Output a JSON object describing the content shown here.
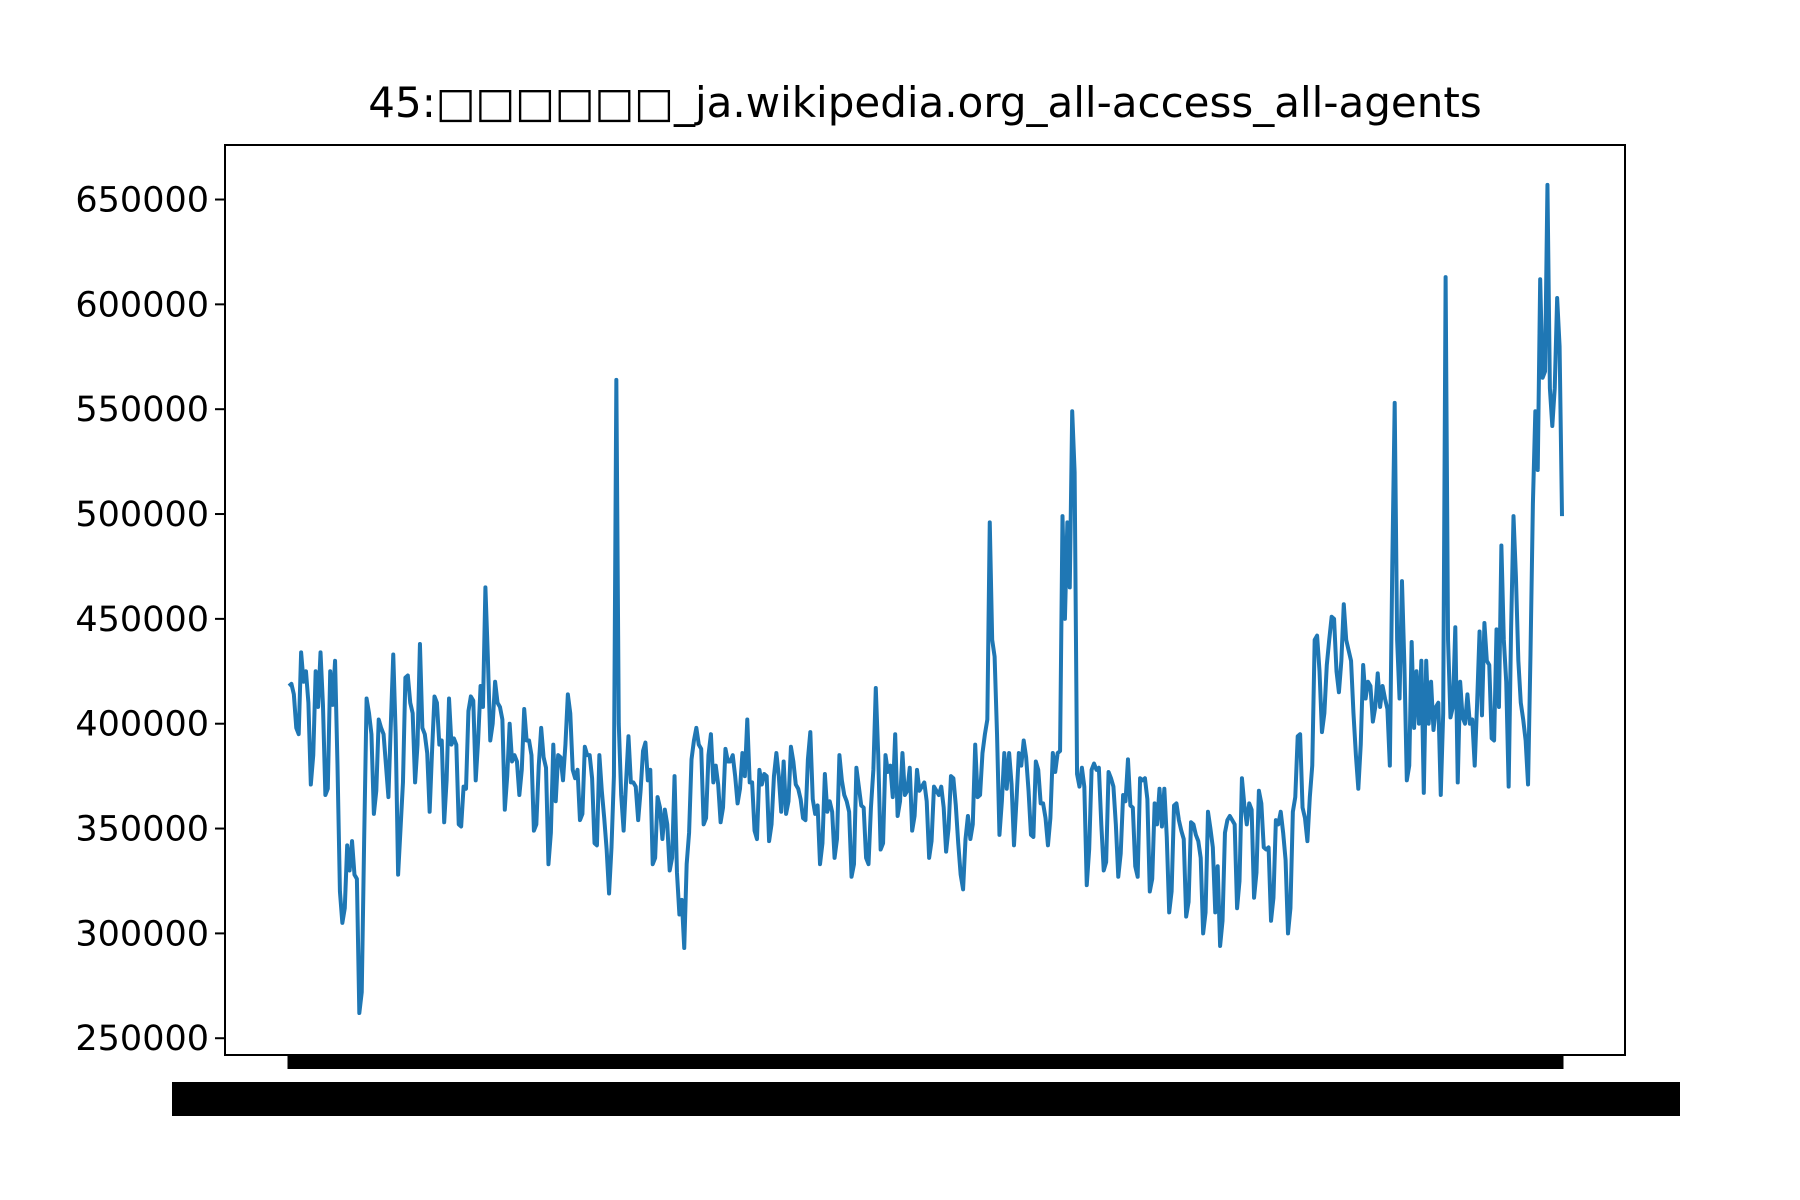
{
  "chart_data": {
    "type": "line",
    "title": "45:□□□□□□_ja.wikipedia.org_all-access_all-agents",
    "xlabel": "",
    "ylabel": "",
    "ylim": [
      242000,
      676000
    ],
    "yticks": [
      250000,
      300000,
      350000,
      400000,
      450000,
      500000,
      550000,
      600000,
      650000
    ],
    "ytick_labels": [
      "250000",
      "300000",
      "350000",
      "400000",
      "450000",
      "500000",
      "550000",
      "600000",
      "650000"
    ],
    "grid": false,
    "legend": "none",
    "color": "#1f77b4",
    "series": [
      {
        "values": [
          418000,
          419000,
          414000,
          398000,
          395000,
          434000,
          420000,
          425000,
          410000,
          371000,
          385000,
          425000,
          408000,
          434000,
          409000,
          366000,
          369000,
          425000,
          409000,
          430000,
          380000,
          320000,
          305000,
          312000,
          342000,
          330000,
          344000,
          328000,
          326000,
          262000,
          272000,
          345000,
          412000,
          405000,
          395000,
          357000,
          368000,
          402000,
          398000,
          395000,
          380000,
          365000,
          400000,
          433000,
          395000,
          328000,
          350000,
          372000,
          422000,
          423000,
          410000,
          405000,
          372000,
          390000,
          438000,
          398000,
          395000,
          386000,
          358000,
          387000,
          413000,
          410000,
          390000,
          392000,
          353000,
          373000,
          412000,
          390000,
          393000,
          390000,
          352000,
          351000,
          370000,
          369000,
          406000,
          413000,
          411000,
          373000,
          392000,
          418000,
          408000,
          465000,
          432000,
          392000,
          400000,
          420000,
          410000,
          408000,
          402000,
          359000,
          375000,
          400000,
          382000,
          385000,
          382000,
          366000,
          378000,
          407000,
          392000,
          392000,
          385000,
          349000,
          352000,
          380000,
          398000,
          384000,
          379000,
          333000,
          348000,
          390000,
          363000,
          385000,
          384000,
          373000,
          390000,
          414000,
          405000,
          378000,
          374000,
          378000,
          354000,
          357000,
          389000,
          385000,
          385000,
          374000,
          343000,
          342000,
          385000,
          368000,
          355000,
          340000,
          319000,
          341000,
          375000,
          564000,
          400000,
          366000,
          349000,
          372000,
          394000,
          372000,
          372000,
          370000,
          354000,
          368000,
          387000,
          391000,
          373000,
          378000,
          333000,
          336000,
          365000,
          360000,
          345000,
          359000,
          352000,
          330000,
          336000,
          375000,
          329000,
          309000,
          316000,
          293000,
          333000,
          348000,
          383000,
          392000,
          398000,
          390000,
          388000,
          352000,
          355000,
          385000,
          395000,
          372000,
          380000,
          371000,
          353000,
          360000,
          388000,
          382000,
          382000,
          385000,
          375000,
          362000,
          369000,
          386000,
          375000,
          402000,
          372000,
          372000,
          349000,
          345000,
          378000,
          371000,
          376000,
          375000,
          344000,
          352000,
          375000,
          386000,
          375000,
          358000,
          382000,
          357000,
          363000,
          389000,
          382000,
          371000,
          369000,
          364000,
          355000,
          354000,
          383000,
          396000,
          364000,
          357000,
          361000,
          333000,
          343000,
          376000,
          358000,
          363000,
          358000,
          336000,
          345000,
          385000,
          373000,
          366000,
          363000,
          358000,
          327000,
          333000,
          379000,
          370000,
          361000,
          360000,
          336000,
          333000,
          360000,
          378000,
          417000,
          385000,
          340000,
          343000,
          385000,
          377000,
          380000,
          365000,
          395000,
          356000,
          363000,
          386000,
          366000,
          368000,
          379000,
          349000,
          356000,
          378000,
          368000,
          370000,
          372000,
          363000,
          336000,
          344000,
          370000,
          368000,
          366000,
          370000,
          360000,
          339000,
          350000,
          375000,
          374000,
          361000,
          343000,
          328000,
          321000,
          345000,
          356000,
          345000,
          352000,
          390000,
          365000,
          366000,
          386000,
          395000,
          402000,
          496000,
          440000,
          432000,
          395000,
          347000,
          363000,
          386000,
          369000,
          386000,
          371000,
          342000,
          363000,
          386000,
          380000,
          392000,
          384000,
          368000,
          347000,
          346000,
          382000,
          378000,
          362000,
          362000,
          355000,
          342000,
          355000,
          386000,
          377000,
          386000,
          387000,
          499000,
          450000,
          496000,
          465000,
          549000,
          520000,
          376000,
          370000,
          379000,
          370000,
          323000,
          340000,
          378000,
          381000,
          378000,
          379000,
          352000,
          330000,
          334000,
          377000,
          374000,
          370000,
          352000,
          327000,
          338000,
          366000,
          363000,
          383000,
          361000,
          360000,
          332000,
          327000,
          374000,
          373000,
          374000,
          364000,
          320000,
          326000,
          362000,
          352000,
          369000,
          351000,
          369000,
          346000,
          310000,
          320000,
          361000,
          362000,
          354000,
          349000,
          345000,
          308000,
          315000,
          353000,
          352000,
          347000,
          344000,
          336000,
          300000,
          310000,
          358000,
          350000,
          341000,
          310000,
          332000,
          294000,
          306000,
          348000,
          354000,
          356000,
          354000,
          352000,
          312000,
          325000,
          374000,
          361000,
          352000,
          362000,
          359000,
          317000,
          329000,
          368000,
          362000,
          341000,
          340000,
          341000,
          306000,
          317000,
          354000,
          352000,
          358000,
          348000,
          335000,
          300000,
          312000,
          358000,
          365000,
          394000,
          395000,
          360000,
          355000,
          344000,
          365000,
          380000,
          440000,
          442000,
          425000,
          396000,
          405000,
          428000,
          440000,
          451000,
          450000,
          425000,
          415000,
          430000,
          457000,
          440000,
          435000,
          430000,
          405000,
          385000,
          369000,
          390000,
          428000,
          412000,
          420000,
          418000,
          401000,
          408000,
          424000,
          408000,
          418000,
          412000,
          407000,
          380000,
          475000,
          553000,
          440000,
          412000,
          468000,
          428000,
          373000,
          380000,
          439000,
          398000,
          425000,
          400000,
          430000,
          367000,
          430000,
          400000,
          420000,
          397000,
          408000,
          410000,
          366000,
          405000,
          613000,
          440000,
          403000,
          408000,
          446000,
          372000,
          420000,
          403000,
          400000,
          414000,
          400000,
          402000,
          380000,
          410000,
          444000,
          404000,
          448000,
          430000,
          428000,
          393000,
          392000,
          445000,
          408000,
          485000,
          440000,
          420000,
          370000,
          445000,
          499000,
          470000,
          430000,
          410000,
          402000,
          392000,
          371000,
          433000,
          505000,
          549000,
          521000,
          612000,
          565000,
          568000,
          657000,
          560000,
          542000,
          560000,
          603000,
          580000,
          499000
        ]
      }
    ]
  }
}
